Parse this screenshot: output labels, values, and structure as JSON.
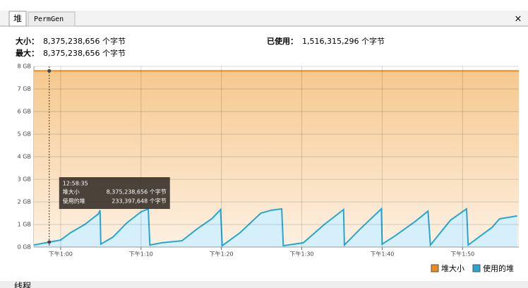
{
  "tabs": [
    "堆",
    "PermGen"
  ],
  "close": "×",
  "header": {
    "size_label": "大小：",
    "size_value": "8,375,238,656 个字节",
    "max_label": "最大：",
    "max_value": "8,375,238,656 个字节",
    "used_label": "已使用：",
    "used_value": "1,516,315,296 个字节"
  },
  "bottom_tab": "线程",
  "chart_data": {
    "type": "area",
    "xlim": [
      56.67,
      117
    ],
    "xticks": [
      {
        "value": 60,
        "label": "下午1:00"
      },
      {
        "value": 70,
        "label": "下午1:10"
      },
      {
        "value": 80,
        "label": "下午1:20"
      },
      {
        "value": 90,
        "label": "下午1:30"
      },
      {
        "value": 100,
        "label": "下午1:40"
      },
      {
        "value": 110,
        "label": "下午1:50"
      }
    ],
    "ylim": [
      0,
      8
    ],
    "yticks": [
      {
        "value": 0,
        "label": "0 GB"
      },
      {
        "value": 1,
        "label": "1 GB"
      },
      {
        "value": 2,
        "label": "2 GB"
      },
      {
        "value": 3,
        "label": "3 GB"
      },
      {
        "value": 4,
        "label": "4 GB"
      },
      {
        "value": 5,
        "label": "5 GB"
      },
      {
        "value": 6,
        "label": "6 GB"
      },
      {
        "value": 7,
        "label": "7 GB"
      },
      {
        "value": 8,
        "label": "8 GB"
      }
    ],
    "grid": true,
    "legend": "bottom-right",
    "series": [
      {
        "name": "堆大小",
        "color": "#e88a1c",
        "fill": "#f6c88e",
        "x": [
          56.67,
          117
        ],
        "values": [
          7.8,
          7.8
        ]
      },
      {
        "name": "使用的堆",
        "color": "#27a6d3",
        "fill": "#d6f0fb",
        "x": [
          56.67,
          58.58,
          60.0,
          61.2,
          63.0,
          64.7,
          64.9,
          65.0,
          66.5,
          68.2,
          70.0,
          70.9,
          71.1,
          72.6,
          75.1,
          77.0,
          78.8,
          79.9,
          80.1,
          82.3,
          84.9,
          86.2,
          87.5,
          87.7,
          90.2,
          92.8,
          95.2,
          95.3,
          97.2,
          99.9,
          100.0,
          101.5,
          104.1,
          105.7,
          106.0,
          108.5,
          110.5,
          110.7,
          113.7,
          114.6,
          116.8
        ],
        "values": [
          0.09,
          0.22,
          0.31,
          0.63,
          1.0,
          1.47,
          1.63,
          0.13,
          0.44,
          1.06,
          1.56,
          1.69,
          0.09,
          0.19,
          0.28,
          0.81,
          1.25,
          1.66,
          0.06,
          0.63,
          1.5,
          1.63,
          1.69,
          0.06,
          0.19,
          1.0,
          1.66,
          0.09,
          0.78,
          1.69,
          0.13,
          0.47,
          1.13,
          1.59,
          0.09,
          1.19,
          1.69,
          0.09,
          0.88,
          1.25,
          1.38
        ]
      }
    ],
    "tooltip": {
      "x": 58.58,
      "time": "12:58:35",
      "rows": [
        "8,375,238,656 个字节",
        "233,397,648 个字节"
      ]
    }
  }
}
